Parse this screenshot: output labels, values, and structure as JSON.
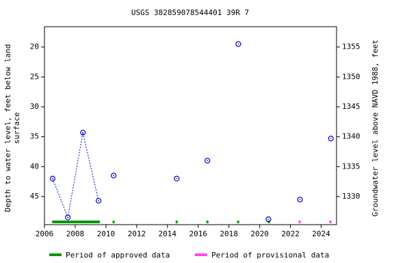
{
  "chart_data": {
    "type": "scatter",
    "title": "USGS 382859078544401 39R 7",
    "ylabel": [
      "Depth to water level, feet below land",
      "surface"
    ],
    "y2label": "Groundwater level above NAVD 1988, feet",
    "xlim": [
      2006,
      2025
    ],
    "xticks": [
      2006,
      2008,
      2010,
      2012,
      2014,
      2016,
      2018,
      2020,
      2022,
      2024
    ],
    "ylim": [
      16.6,
      49.7
    ],
    "y_inverted": true,
    "yticks": [
      20,
      25,
      30,
      35,
      40,
      45
    ],
    "y2lim": [
      1358.4,
      1325.3
    ],
    "y2ticks": [
      1330,
      1335,
      1340,
      1345,
      1350,
      1355
    ],
    "series": [
      {
        "color": "#0000cc",
        "style": "dotted-line",
        "x": [
          2006.53,
          2007.52,
          2008.5,
          2009.52
        ],
        "values": [
          42.0,
          48.5,
          34.3,
          45.7
        ]
      },
      {
        "color": "#0000cc",
        "style": "markers",
        "x": [
          2010.5,
          2014.6,
          2016.6,
          2018.61,
          2020.57,
          2022.62,
          2024.63
        ],
        "values": [
          41.5,
          42.0,
          39.0,
          19.5,
          48.8,
          45.5,
          35.3
        ]
      }
    ],
    "periods": [
      {
        "name": "Period of approved data",
        "color": "#009900",
        "spans": [
          [
            2006.5,
            2009.6
          ],
          [
            2010.5,
            2010.5
          ],
          [
            2014.6,
            2014.6
          ],
          [
            2016.6,
            2016.6
          ],
          [
            2018.6,
            2018.6
          ],
          [
            2020.6,
            2020.6
          ]
        ]
      },
      {
        "name": "Period of provisional data",
        "color": "#ff44ff",
        "spans": [
          [
            2022.6,
            2022.6
          ],
          [
            2024.6,
            2024.6
          ]
        ]
      }
    ]
  }
}
